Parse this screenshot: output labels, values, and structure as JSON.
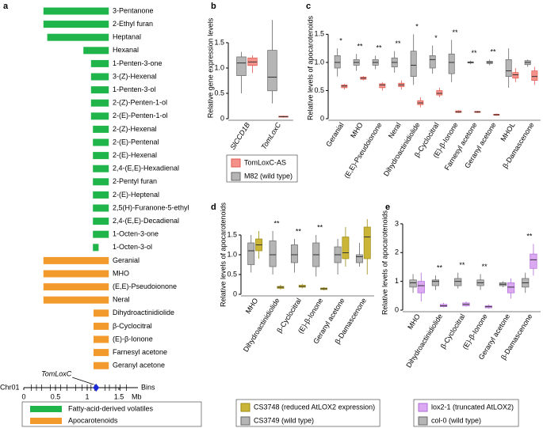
{
  "chart_data": [
    {
      "type": "range-bar",
      "panel_label": "a",
      "axis_name": "Chr01",
      "bins_label": "Bins",
      "xlabel": "Mb",
      "xlim": [
        0,
        1.8
      ],
      "xticks": [
        0,
        0.5,
        1,
        1.5
      ],
      "bin_boundaries": [
        0.12,
        0.2,
        0.28,
        0.42,
        0.5,
        0.58,
        0.68,
        0.82,
        0.92,
        1.0,
        1.06,
        1.12,
        1.28,
        1.35,
        1.45,
        1.52,
        1.62
      ],
      "annotation": {
        "text": "TomLoxC",
        "x": 1.14
      },
      "series": [
        {
          "name": "Fatty-acid-derived volatiles",
          "color": "#1fb54a",
          "label_color": "#1fa53e",
          "categories": [
            "3-Pentanone",
            "2-Ethyl furan",
            "Heptanal",
            "Hexanal",
            "1-Penten-3-one",
            "3-(Z)-Hexenal",
            "1-Penten-3-ol",
            "2-(Z)-Penten-1-ol",
            "2-(E)-Penten-1-ol",
            "2-(Z)-Hexenal",
            "2-(E)-Pentenal",
            "2-(E)-Hexenal",
            "2,4-(E,E)-Hexadienal",
            "2-Pentyl furan",
            "2-(E)-Heptenal",
            "2,5(H)-Furanone-5-ethyl",
            "2,4-(E,E)-Decadienal",
            "1-Octen-3-one",
            "1-Octen-3-ol"
          ],
          "starts": [
            0.31,
            0.31,
            0.37,
            0.94,
            1.06,
            1.06,
            1.06,
            1.06,
            1.06,
            1.09,
            1.09,
            1.09,
            1.09,
            1.09,
            1.09,
            1.09,
            1.09,
            1.09,
            1.09
          ],
          "ends": [
            1.34,
            1.34,
            1.34,
            1.34,
            1.34,
            1.34,
            1.34,
            1.34,
            1.34,
            1.34,
            1.34,
            1.34,
            1.34,
            1.34,
            1.34,
            1.34,
            1.34,
            1.34,
            1.18
          ]
        },
        {
          "name": "Apocarotenoids",
          "color": "#f39a2c",
          "label_color": "#e8623a",
          "categories": [
            "Geranial",
            "MHO",
            "(E,E)-Pseudoionone",
            "Neral",
            "Dihydroactinidiolide",
            "β-Cyclocitral",
            "(E)-β-Ionone",
            "Farnesyl acetone",
            "Geranyl acetone"
          ],
          "starts": [
            0.31,
            0.31,
            0.31,
            0.31,
            1.1,
            1.1,
            1.1,
            1.1,
            1.1
          ],
          "ends": [
            1.34,
            1.34,
            1.34,
            1.34,
            1.34,
            1.34,
            1.34,
            1.34,
            1.34
          ]
        }
      ]
    },
    {
      "type": "box",
      "panel_label": "b",
      "ylabel": "Relative gene expression levels",
      "categories": [
        "SlCCD1B",
        "TomLoxC"
      ],
      "category_colors": [
        "#000000",
        "#000000"
      ],
      "ylim": [
        0,
        2
      ],
      "yticks": [
        0,
        0.5,
        {
          "value": 1,
          "label": "1.0"
        },
        1.5
      ],
      "series": [
        {
          "color": "#b5b5b5",
          "stroke": "#666666",
          "min": [
            0.5,
            0.3
          ],
          "q1": [
            0.85,
            0.55
          ],
          "median": [
            1.1,
            0.82
          ],
          "q3": [
            1.22,
            1.35
          ],
          "max": [
            1.32,
            1.95
          ]
        },
        {
          "color": "#f4918a",
          "stroke": "#e05a4e",
          "min": [
            0.9,
            0.02
          ],
          "q1": [
            1.05,
            0.03
          ],
          "median": [
            1.12,
            0.04
          ],
          "q3": [
            1.2,
            0.05
          ],
          "max": [
            1.25,
            0.06
          ]
        }
      ]
    },
    {
      "type": "box",
      "panel_label": "c",
      "ylabel": "Relative levels of apocarotenoids",
      "categories": [
        "Geranial",
        "MHO",
        "(E,E)-Pseudoionone",
        "Neral",
        "Dihydroactinidiolide",
        "β-Cyclocitral",
        "(E)-β-Ionone",
        "Farnesyl acetone",
        "Geranyl acetone",
        "MHOL",
        "β-Damascenone"
      ],
      "category_colors": [
        "#e8623a",
        "#e8623a",
        "#e8623a",
        "#e8623a",
        "#e8623a",
        "#e8623a",
        "#e8623a",
        "#e8623a",
        "#e8623a",
        "#000000",
        "#000000"
      ],
      "annotations": [
        "*",
        "**",
        "**",
        "**",
        "*",
        "*",
        "**",
        "**",
        "**",
        null,
        null
      ],
      "ylim": [
        0,
        1.8
      ],
      "yticks": [
        0,
        0.5,
        {
          "value": 1,
          "label": "1.0"
        },
        1.5
      ],
      "series": [
        {
          "name": "M82 (wild type)",
          "color": "#b5b5b5",
          "stroke": "#666666",
          "min": [
            0.75,
            0.85,
            0.88,
            0.82,
            0.6,
            0.8,
            0.65,
            0.97,
            0.95,
            0.55,
            0.92
          ],
          "q1": [
            0.9,
            0.95,
            0.95,
            0.92,
            0.75,
            0.9,
            0.8,
            0.99,
            0.98,
            0.75,
            0.96
          ],
          "median": [
            1.0,
            1.0,
            1.0,
            1.0,
            0.95,
            1.05,
            1.0,
            1.0,
            1.0,
            0.85,
            1.0
          ],
          "q3": [
            1.12,
            1.05,
            1.05,
            1.08,
            1.2,
            1.12,
            1.15,
            1.01,
            1.02,
            1.05,
            1.03
          ],
          "max": [
            1.25,
            1.15,
            1.12,
            1.2,
            1.5,
            1.3,
            1.4,
            1.03,
            1.05,
            1.25,
            1.05
          ]
        },
        {
          "name": "TomLoxC-AS",
          "color": "#f4918a",
          "stroke": "#e05a4e",
          "min": [
            0.52,
            0.68,
            0.5,
            0.52,
            0.2,
            0.38,
            0.1,
            0.1,
            0.05,
            0.65,
            0.6
          ],
          "q1": [
            0.55,
            0.7,
            0.55,
            0.57,
            0.25,
            0.42,
            0.11,
            0.11,
            0.06,
            0.72,
            0.68
          ],
          "median": [
            0.58,
            0.72,
            0.6,
            0.6,
            0.28,
            0.45,
            0.12,
            0.12,
            0.07,
            0.78,
            0.75
          ],
          "q3": [
            0.6,
            0.74,
            0.62,
            0.63,
            0.32,
            0.5,
            0.14,
            0.13,
            0.08,
            0.82,
            0.85
          ],
          "max": [
            0.62,
            0.76,
            0.65,
            0.68,
            0.38,
            0.55,
            0.15,
            0.14,
            0.09,
            0.9,
            0.92
          ]
        }
      ]
    },
    {
      "type": "box",
      "panel_label": "d",
      "ylabel": "Relative levels of apocarotenoids",
      "categories": [
        "MHO",
        "Dihydroactinidiolide",
        "β-Cyclocitral",
        "(E)-β-Ionone",
        "Geranyl acetone",
        "β-Damascenone"
      ],
      "category_colors": [
        "#e8623a",
        "#e8623a",
        "#e8623a",
        "#e8623a",
        "#e8623a",
        "#000000"
      ],
      "annotations": [
        null,
        "**",
        "**",
        "**",
        null,
        null
      ],
      "ylim": [
        0,
        2
      ],
      "yticks": [
        0,
        0.5,
        {
          "value": 1,
          "label": "1.0"
        },
        1.5
      ],
      "series": [
        {
          "name": "CS3749 (wild type)",
          "color": "#b5b5b5",
          "stroke": "#666666",
          "min": [
            0.55,
            0.5,
            0.55,
            0.45,
            0.5,
            0.7
          ],
          "q1": [
            0.75,
            0.7,
            0.8,
            0.7,
            0.8,
            0.8
          ],
          "median": [
            1.1,
            1.0,
            1.0,
            1.0,
            1.0,
            0.95
          ],
          "q3": [
            1.3,
            1.35,
            1.25,
            1.3,
            1.2,
            1.0
          ],
          "max": [
            1.5,
            1.6,
            1.4,
            1.5,
            1.4,
            1.3
          ]
        },
        {
          "name": "CS3748 (reduced AtLOX2 expression)",
          "color": "#cbb536",
          "stroke": "#9c8a12",
          "min": [
            0.9,
            0.12,
            0.15,
            0.1,
            0.7,
            0.5
          ],
          "q1": [
            1.1,
            0.15,
            0.18,
            0.12,
            0.9,
            0.9
          ],
          "median": [
            1.25,
            0.18,
            0.2,
            0.14,
            1.05,
            1.45
          ],
          "q3": [
            1.4,
            0.2,
            0.23,
            0.16,
            1.45,
            1.7
          ],
          "max": [
            1.6,
            0.24,
            0.26,
            0.18,
            1.7,
            1.9
          ]
        }
      ]
    },
    {
      "type": "box",
      "panel_label": "e",
      "ylabel": "Relative levels of apocarotenoids",
      "categories": [
        "MHO",
        "Dihydroactinidiolide",
        "β-Cyclocitral",
        "(E)-β-Ionone",
        "Geranyl acetone",
        "β-Damascenone"
      ],
      "category_colors": [
        "#e8623a",
        "#e8623a",
        "#e8623a",
        "#e8623a",
        "#e8623a",
        "#000000"
      ],
      "annotations": [
        null,
        "**",
        "**",
        "**",
        null,
        "**"
      ],
      "ylim": [
        0,
        3.3
      ],
      "yticks": [
        0,
        1,
        2,
        3
      ],
      "series": [
        {
          "name": "col-0 (wild type)",
          "color": "#b5b5b5",
          "stroke": "#666666",
          "min": [
            0.6,
            0.7,
            0.75,
            0.7,
            0.8,
            0.6
          ],
          "q1": [
            0.8,
            0.85,
            0.85,
            0.85,
            0.85,
            0.8
          ],
          "median": [
            0.95,
            1.0,
            1.0,
            0.95,
            0.9,
            0.95
          ],
          "q3": [
            1.05,
            1.05,
            1.1,
            1.05,
            0.95,
            1.1
          ],
          "max": [
            1.25,
            1.2,
            1.3,
            1.25,
            1.0,
            1.3
          ]
        },
        {
          "name": "lox2-1 (truncated AtLOX2)",
          "color": "#dba8f2",
          "stroke": "#b06ad8",
          "min": [
            0.3,
            0.1,
            0.12,
            0.05,
            0.4,
            1.2
          ],
          "q1": [
            0.6,
            0.12,
            0.15,
            0.08,
            0.6,
            1.45
          ],
          "median": [
            0.85,
            0.15,
            0.2,
            0.12,
            0.8,
            1.75
          ],
          "q3": [
            1.0,
            0.2,
            0.25,
            0.15,
            0.95,
            1.95
          ],
          "max": [
            1.3,
            0.25,
            0.3,
            0.2,
            1.1,
            2.3
          ]
        }
      ]
    }
  ]
}
